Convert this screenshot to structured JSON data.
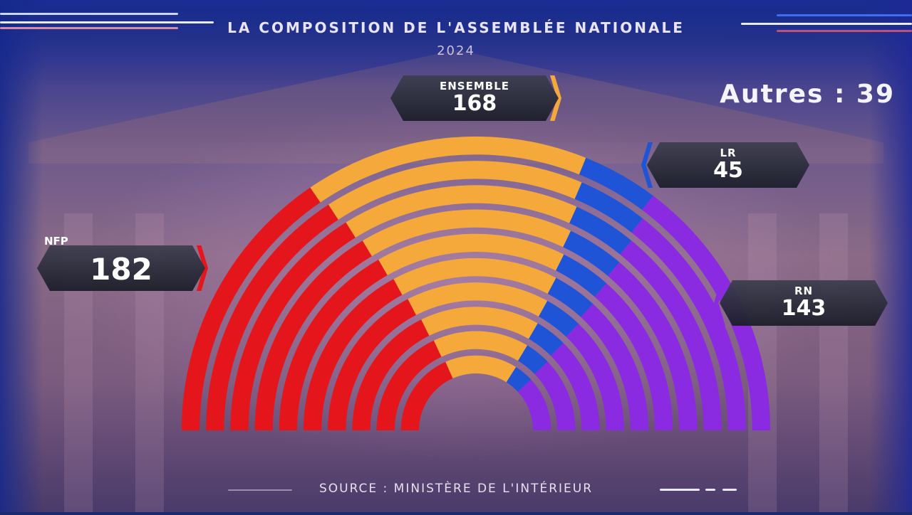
{
  "header": {
    "title": "LA COMPOSITION DE L'ASSEMBLÉE NATIONALE",
    "year": "2024"
  },
  "others_label": "Autres : 39",
  "source": "SOURCE : MINISTÈRE DE L'INTÉRIEUR",
  "chart_data": {
    "type": "hemicycle",
    "title": "LA COMPOSITION DE L'ASSEMBLÉE NATIONALE",
    "subtitle": "2024",
    "categories": [
      "NFP",
      "ENSEMBLE",
      "LR",
      "RN"
    ],
    "values": [
      182,
      168,
      45,
      143
    ],
    "others": 39,
    "colors": {
      "NFP": "#e4161b",
      "ENSEMBLE": "#f5a93a",
      "LR": "#1f54d6",
      "RN": "#8a2be2"
    },
    "labels": [
      {
        "name": "NFP",
        "value": "182"
      },
      {
        "name": "ENSEMBLE",
        "value": "168"
      },
      {
        "name": "LR",
        "value": "45"
      },
      {
        "name": "RN",
        "value": "143"
      }
    ],
    "rows": 10
  }
}
